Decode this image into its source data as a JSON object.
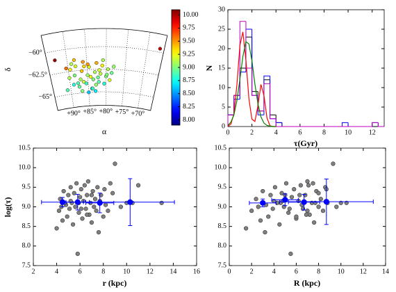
{
  "chart_data": [
    {
      "type": "sky-map",
      "xlabel": "α",
      "ylabel": "δ",
      "colormap": "jet",
      "ralim": [
        95,
        66
      ],
      "declim": [
        -66.5,
        -58
      ],
      "xticks": [
        {
          "value": 90,
          "label": "+90°"
        },
        {
          "value": 85,
          "label": "+85°"
        },
        {
          "value": 80,
          "label": "+80°"
        },
        {
          "value": 75,
          "label": "+75°"
        },
        {
          "value": 70,
          "label": "+70°"
        }
      ],
      "yticks": [
        {
          "value": -60,
          "label": "−60°"
        },
        {
          "value": -62.5,
          "label": "−62.5°"
        },
        {
          "value": -65,
          "label": "−65°"
        }
      ],
      "ra": [
        91,
        90,
        89.5,
        89,
        88.5,
        88,
        87.5,
        87,
        86.5,
        86,
        85.5,
        85,
        84.5,
        84,
        83.5,
        83,
        82.5,
        82,
        81.5,
        81,
        80.5,
        80,
        79.5,
        79,
        78.5,
        78,
        90.5,
        89,
        87.8,
        86.8,
        85.8,
        84.8,
        83.8,
        82.8,
        81.8,
        80.8,
        79.8,
        86.2,
        84.2,
        82.2,
        88.2,
        93,
        67,
        85,
        83
      ],
      "dec": [
        -64.5,
        -63.2,
        -62.3,
        -64.0,
        -63.0,
        -62.0,
        -64.3,
        -63.5,
        -62.6,
        -61.6,
        -64.0,
        -63.1,
        -62.2,
        -64.6,
        -63.6,
        -62.8,
        -61.8,
        -63.9,
        -63.0,
        -62.1,
        -64.1,
        -63.3,
        -62.5,
        -63.7,
        -62.9,
        -62.2,
        -62.1,
        -61.7,
        -63.9,
        -64.8,
        -62.1,
        -61.9,
        -64.6,
        -64.2,
        -62.6,
        -61.5,
        -63.1,
        -63.8,
        -63.3,
        -63.4,
        -61.3,
        -61.0,
        -59.6,
        -65.0,
        -64.9
      ],
      "values": [
        8.9,
        9.1,
        9.3,
        8.8,
        9.0,
        9.2,
        8.95,
        9.1,
        9.4,
        9.5,
        8.85,
        9.05,
        9.2,
        8.7,
        9.0,
        9.1,
        9.45,
        8.9,
        9.15,
        9.3,
        8.8,
        9.0,
        9.1,
        9.2,
        8.95,
        9.05,
        9.6,
        9.1,
        8.9,
        9.0,
        9.35,
        9.5,
        8.85,
        9.05,
        9.2,
        9.1,
        9.0,
        9.15,
        9.25,
        8.95,
        9.4,
        10.05,
        9.95,
        8.6,
        8.7
      ],
      "colorbar": {
        "lim": [
          7.9,
          10.1
        ],
        "ticks": [
          {
            "value": 8,
            "label": "8.00"
          },
          8.25,
          {
            "value": 8.5,
            "label": "8.50"
          },
          8.75,
          {
            "value": 9,
            "label": "9.00"
          },
          9.25,
          {
            "value": 9.5,
            "label": "9.50"
          },
          9.75,
          {
            "value": 10,
            "label": "10.00"
          }
        ]
      }
    },
    {
      "type": "histogram",
      "xlabel": "τ(Gyr)",
      "ylabel": "N",
      "xlim": [
        0,
        13
      ],
      "ylim": [
        0,
        30
      ],
      "xticks": [
        0,
        2,
        4,
        6,
        8,
        10,
        12
      ],
      "yticks": [
        0,
        5,
        10,
        15,
        20,
        25,
        30
      ],
      "bins": [
        0,
        0.5,
        1,
        1.5,
        2,
        2.5,
        3,
        3.5,
        4,
        4.5,
        5,
        5.5,
        6,
        6.5,
        7,
        7.5,
        8,
        8.5,
        9,
        9.5,
        10,
        10.5,
        11,
        11.5,
        12,
        12.5,
        13
      ],
      "series": [
        {
          "color": "#000000",
          "values": [
            3,
            8,
            15,
            23,
            9,
            4,
            12,
            3,
            1,
            0,
            0,
            0,
            0,
            0,
            0,
            0,
            0,
            0,
            0,
            0,
            0,
            0,
            0,
            0,
            0,
            0
          ]
        },
        {
          "color": "#0000ff",
          "values": [
            3,
            7,
            14,
            25,
            8,
            3,
            13,
            2,
            1,
            0,
            0,
            0,
            0,
            0,
            0,
            0,
            0,
            0,
            0,
            1,
            0,
            0,
            0,
            0,
            1,
            0
          ]
        },
        {
          "color": "#bf00bf",
          "values": [
            3,
            8,
            27,
            15,
            8,
            4,
            11,
            2,
            0,
            0,
            0,
            0,
            0,
            0,
            0,
            0,
            0,
            0,
            0,
            0,
            0,
            0,
            0,
            0,
            1,
            0
          ]
        }
      ],
      "lines": [
        {
          "color": "#ff0000",
          "x": [
            0,
            0.25,
            0.5,
            0.75,
            1,
            1.25,
            1.5,
            1.75,
            2,
            2.25,
            2.5,
            2.75,
            3,
            3.25,
            3.5,
            3.75,
            4
          ],
          "values": [
            0.1,
            0.6,
            3.3,
            10.7,
            20.8,
            24.3,
            17,
            7.1,
            1.9,
            1.3,
            5.4,
            10.8,
            8,
            2.2,
            0.2,
            0,
            0
          ]
        },
        {
          "color": "#008000",
          "x": [
            0,
            0.25,
            0.5,
            0.75,
            1,
            1.25,
            1.5,
            1.75,
            2,
            2.25,
            2.5,
            2.75,
            3,
            3.25,
            3.5,
            3.75,
            4
          ],
          "values": [
            0.3,
            1.1,
            3,
            6.7,
            12.1,
            18,
            21.8,
            21.2,
            16.9,
            10.9,
            5.8,
            2.5,
            0.9,
            0.3,
            0.1,
            0,
            0
          ]
        }
      ]
    },
    {
      "type": "scatter",
      "xlabel": "r (kpc)",
      "ylabel": "log(τ)",
      "xlim": [
        2,
        16
      ],
      "ylim": [
        7.5,
        10.5
      ],
      "xticks": [
        2,
        4,
        6,
        8,
        10,
        12,
        14,
        16
      ],
      "yticks": [
        7.5,
        {
          "value": 8,
          "label": "8.0"
        },
        8.5,
        {
          "value": 9,
          "label": "9.0"
        },
        9.5,
        {
          "value": 10,
          "label": "10.0"
        },
        10.5
      ],
      "series": [
        {
          "color": "#808080",
          "x": [
            4.0,
            4.2,
            4.3,
            4.5,
            4.6,
            4.8,
            4.9,
            5.0,
            5.1,
            5.2,
            5.3,
            5.4,
            5.5,
            5.6,
            5.7,
            5.8,
            5.9,
            6.0,
            6.1,
            6.2,
            6.3,
            6.4,
            6.5,
            6.6,
            6.7,
            6.8,
            6.9,
            7.0,
            7.1,
            7.2,
            7.3,
            7.4,
            7.5,
            7.6,
            7.7,
            7.8,
            8.0,
            8.2,
            8.4,
            8.6,
            8.8,
            9.0,
            9.5,
            10.0,
            10.5,
            11.0,
            13.0,
            5.9,
            4.4,
            6.1,
            7.0,
            5.2,
            4.7,
            6.6,
            8.1
          ],
          "values": [
            8.45,
            8.9,
            9.2,
            8.65,
            9.4,
            9.05,
            8.75,
            9.3,
            8.95,
            9.5,
            9.1,
            8.55,
            9.35,
            9.0,
            9.6,
            7.8,
            8.85,
            9.25,
            9.45,
            8.7,
            9.15,
            9.55,
            8.95,
            9.3,
            9.65,
            8.8,
            9.1,
            8.6,
            9.4,
            9.0,
            9.2,
            8.9,
            9.5,
            8.35,
            9.15,
            9.3,
            8.75,
            9.05,
            8.9,
            9.6,
            9.35,
            10.1,
            9.0,
            9.1,
            9.1,
            9.55,
            9.1,
            9.1,
            9.0,
            8.95,
            9.3,
            9.15,
            9.1,
            8.8,
            9.45
          ]
        },
        {
          "color": "#0000ff",
          "x": [
            4.5,
            5.8,
            7.7,
            10.3
          ],
          "values": [
            9.12,
            9.12,
            9.1,
            9.12
          ],
          "xerr": [
            1.8,
            1.0,
            1.2,
            3.8
          ],
          "yerr": [
            0.12,
            0.2,
            0.25,
            0.6
          ]
        }
      ]
    },
    {
      "type": "scatter",
      "xlabel": "R (kpc)",
      "ylabel": "",
      "xlim": [
        0,
        14
      ],
      "ylim": [
        7.5,
        10.5
      ],
      "xticks": [
        0,
        2,
        4,
        6,
        8,
        10,
        12,
        14
      ],
      "yticks": [
        7.5,
        {
          "value": 8,
          "label": "8.0"
        },
        8.5,
        {
          "value": 9,
          "label": "9.0"
        },
        9.5,
        {
          "value": 10,
          "label": "10.0"
        },
        10.5
      ],
      "series": [
        {
          "color": "#808080",
          "x": [
            1.5,
            2.0,
            2.4,
            2.8,
            3.0,
            3.3,
            3.5,
            3.7,
            3.9,
            4.1,
            4.3,
            4.5,
            4.7,
            4.9,
            5.1,
            5.5,
            5.3,
            5.6,
            5.8,
            6.0,
            6.2,
            6.4,
            6.6,
            6.8,
            7.0,
            7.2,
            7.4,
            7.6,
            7.8,
            8.0,
            8.2,
            8.4,
            8.6,
            3.2,
            4.0,
            5.0,
            6.0,
            6.5,
            7.0,
            7.5,
            8.0,
            9.3,
            9.6,
            10.0,
            10.5,
            7.1,
            8.8,
            4.6,
            2.6,
            5.4,
            6.3,
            4.8,
            7.7,
            6.9,
            8.7
          ],
          "values": [
            8.45,
            8.9,
            9.2,
            8.65,
            9.4,
            9.05,
            8.75,
            9.3,
            8.95,
            9.5,
            9.1,
            8.55,
            9.35,
            9.0,
            9.6,
            7.8,
            8.85,
            9.25,
            9.45,
            8.7,
            9.15,
            9.55,
            8.95,
            9.3,
            9.65,
            8.8,
            9.1,
            8.6,
            9.4,
            9.0,
            9.2,
            8.9,
            9.5,
            8.35,
            9.15,
            9.3,
            8.75,
            9.05,
            8.9,
            9.6,
            9.35,
            10.1,
            9.0,
            9.1,
            9.1,
            9.55,
            9.1,
            9.1,
            9.0,
            8.95,
            9.3,
            9.15,
            9.1,
            8.8,
            9.45
          ]
        },
        {
          "color": "#0000ff",
          "x": [
            3.0,
            5.0,
            6.7,
            8.7
          ],
          "values": [
            9.1,
            9.18,
            9.12,
            9.13
          ],
          "xerr": [
            1.2,
            1.2,
            1.4,
            4.2
          ],
          "yerr": [
            0.1,
            0.15,
            0.2,
            0.58
          ]
        }
      ]
    }
  ]
}
